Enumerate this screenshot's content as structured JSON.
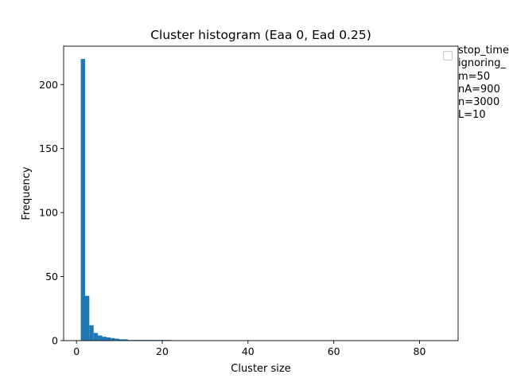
{
  "chart_data": {
    "type": "bar",
    "title": "Cluster histogram (Eaa 0, Ead 0.25)",
    "xlabel": "Cluster size",
    "ylabel": "Frequency",
    "xlim": [
      -3,
      89
    ],
    "ylim": [
      0,
      230
    ],
    "xticks": [
      "0",
      "20",
      "40",
      "60",
      "80"
    ],
    "yticks": [
      "0",
      "50",
      "100",
      "150",
      "200"
    ],
    "bar_color": "#1f77b4",
    "bins": [
      {
        "x": 1,
        "value": 220
      },
      {
        "x": 2,
        "value": 35
      },
      {
        "x": 3,
        "value": 12
      },
      {
        "x": 4,
        "value": 6
      },
      {
        "x": 5,
        "value": 4
      },
      {
        "x": 6,
        "value": 3
      },
      {
        "x": 7,
        "value": 2.5
      },
      {
        "x": 8,
        "value": 2
      },
      {
        "x": 9,
        "value": 1.5
      },
      {
        "x": 10,
        "value": 1
      },
      {
        "x": 11,
        "value": 1
      },
      {
        "x": 12,
        "value": 0.5
      },
      {
        "x": 13,
        "value": 0.5
      },
      {
        "x": 14,
        "value": 0.5
      },
      {
        "x": 15,
        "value": 0.5
      },
      {
        "x": 16,
        "value": 0.5
      },
      {
        "x": 17,
        "value": 0.5
      },
      {
        "x": 18,
        "value": 0.5
      },
      {
        "x": 19,
        "value": 0.5
      },
      {
        "x": 20,
        "value": 0.5
      },
      {
        "x": 21,
        "value": 0.5
      }
    ],
    "legend_position": "outside-right",
    "legend_lines": [
      "stop_time",
      "ignoring_",
      "m=50",
      "nA=900",
      "n=3000",
      "L=10"
    ]
  }
}
